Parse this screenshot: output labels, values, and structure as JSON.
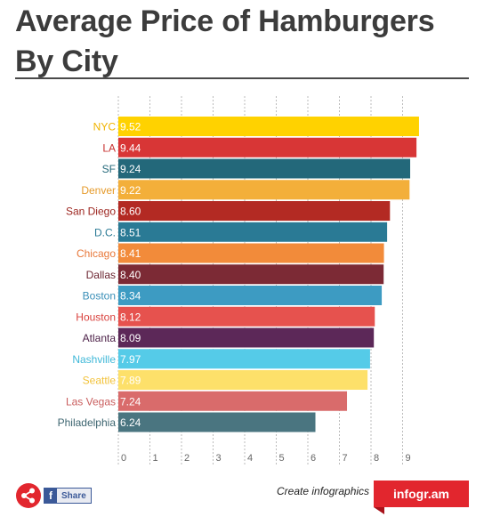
{
  "header": {
    "title": "Average Price of Hamburgers By City"
  },
  "chart_data": {
    "type": "bar",
    "orientation": "horizontal",
    "title": "Average Price of Hamburgers By City",
    "xlabel": "",
    "ylabel": "",
    "xlim": [
      0,
      10
    ],
    "x_ticks": [
      "0",
      "1",
      "2",
      "3",
      "4",
      "5",
      "6",
      "7",
      "8",
      "9"
    ],
    "grid": true,
    "categories": [
      "NYC",
      "LA",
      "SF",
      "Denver",
      "San Diego",
      "D.C.",
      "Chicago",
      "Dallas",
      "Boston",
      "Houston",
      "Atlanta",
      "Nashville",
      "Seattle",
      "Las Vegas",
      "Philadelphia"
    ],
    "values": [
      9.52,
      9.44,
      9.24,
      9.22,
      8.6,
      8.51,
      8.41,
      8.4,
      8.34,
      8.12,
      8.09,
      7.97,
      7.89,
      7.24,
      6.24
    ],
    "value_labels": [
      "9.52",
      "9.44",
      "9.24",
      "9.22",
      "8.60",
      "8.51",
      "8.41",
      "8.40",
      "8.34",
      "8.12",
      "8.09",
      "7.97",
      "7.89",
      "7.24",
      "6.24"
    ],
    "colors": [
      "#ffd200",
      "#d83636",
      "#23687a",
      "#f3af3a",
      "#b32a23",
      "#2a7a95",
      "#f28b3a",
      "#7c2a35",
      "#3d9bc2",
      "#e6524e",
      "#5c2858",
      "#55cbe8",
      "#fde06a",
      "#d96b6b",
      "#4a7580"
    ],
    "label_colors": [
      "#f0b400",
      "#c7302f",
      "#23687a",
      "#e59a2a",
      "#9c241e",
      "#2a7a95",
      "#e8783a",
      "#6b2430",
      "#3a8fb8",
      "#d9423e",
      "#4d2249",
      "#3fb8d8",
      "#f2c23a",
      "#c95d5d",
      "#3d6570"
    ]
  },
  "footer": {
    "share_icon": "share-icon",
    "facebook_label": "Share",
    "facebook_icon": "facebook-icon",
    "credit_text": "Create infographics",
    "brand_label": "infogr.am",
    "brand_color": "#e2262e"
  }
}
